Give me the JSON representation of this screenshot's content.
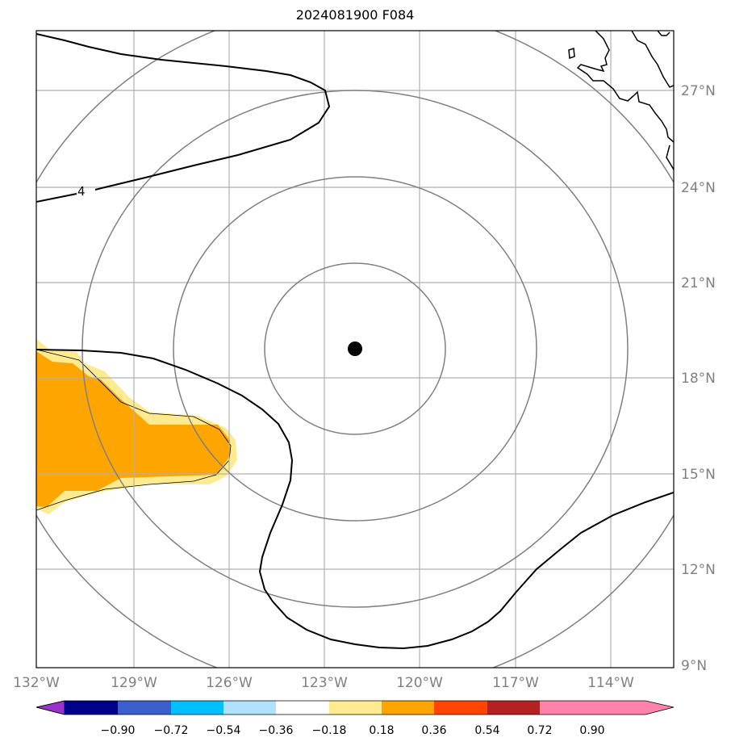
{
  "title": "2024081900 F084",
  "map": {
    "lon_ticks": [
      "132°W",
      "129°W",
      "126°W",
      "123°W",
      "120°W",
      "117°W",
      "114°W"
    ],
    "lat_ticks": [
      "27°N",
      "24°N",
      "21°N",
      "18°N",
      "15°N",
      "12°N",
      "9°N"
    ],
    "storm_center": {
      "lon": -122.0,
      "lat": 19.0
    },
    "range_rings_count": 4,
    "contour_label": "4",
    "shaded_field_colors": {
      "0.18-0.36": "#ffeb8f",
      "0.36-0.54": "#ffa500"
    }
  },
  "colorbar": {
    "colors": [
      "#9933cc",
      "#00008b",
      "#3a5fcd",
      "#00bfff",
      "#b0e2ff",
      "#ffffff",
      "#ffeb8f",
      "#ffa500",
      "#ff4500",
      "#b22222",
      "#ff82ab"
    ],
    "labels": [
      "−0.90",
      "−0.72",
      "−0.54",
      "−0.36",
      "−0.18",
      "0.18",
      "0.36",
      "0.54",
      "0.72",
      "0.90"
    ]
  }
}
